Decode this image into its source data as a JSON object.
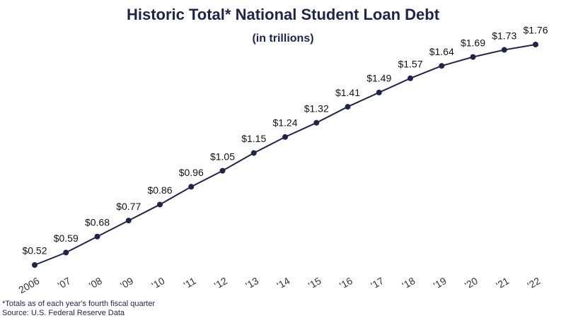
{
  "chart_data": {
    "type": "line",
    "title": "Historic Total* National Student Loan Debt",
    "subtitle": "(in trillions)",
    "categories": [
      "2006",
      "'07",
      "'08",
      "'09",
      "'10",
      "'11",
      "'12",
      "'13",
      "'14",
      "'15",
      "'16",
      "'17",
      "'18",
      "'19",
      "'20",
      "'21",
      "'22"
    ],
    "values": [
      0.52,
      0.59,
      0.68,
      0.77,
      0.86,
      0.96,
      1.05,
      1.15,
      1.24,
      1.32,
      1.41,
      1.49,
      1.57,
      1.64,
      1.69,
      1.73,
      1.76
    ],
    "value_labels": [
      "$0.52",
      "$0.59",
      "$0.68",
      "$0.77",
      "$0.86",
      "$0.96",
      "$1.05",
      "$1.15",
      "$1.24",
      "$1.32",
      "$1.41",
      "$1.49",
      "$1.57",
      "$1.64",
      "$1.69",
      "$1.73",
      "$1.76"
    ],
    "color": "#1f2448",
    "footnote": "*Totals as of each year's fourth fiscal quarter",
    "source": "Source: U.S. Federal Reserve Data"
  }
}
